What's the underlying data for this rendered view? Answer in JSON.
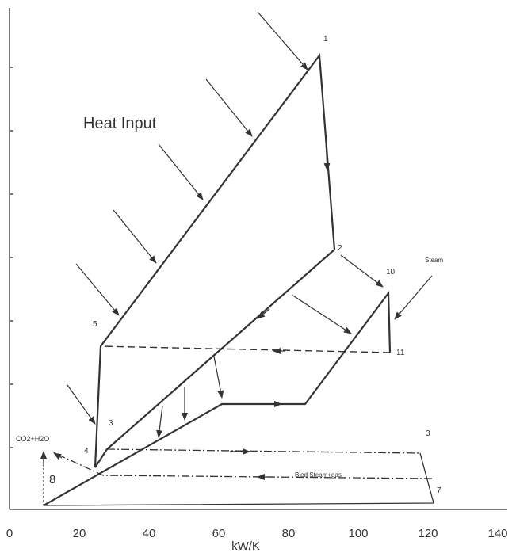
{
  "axis": {
    "ticks": [
      "0",
      "20",
      "40",
      "60",
      "80",
      "100",
      "120",
      "140"
    ],
    "label": "kW/K"
  },
  "labels": {
    "p1": "1",
    "heat": "Heat Input",
    "p2": "2",
    "p10": "10",
    "steam": "Steam",
    "p5": "5",
    "p11": "11",
    "p3a": "3",
    "co2": "CO2+H2O",
    "p4": "4",
    "p8": "8",
    "p3b": "3",
    "bled": "Bled Steam+gas",
    "p7": "7"
  }
}
